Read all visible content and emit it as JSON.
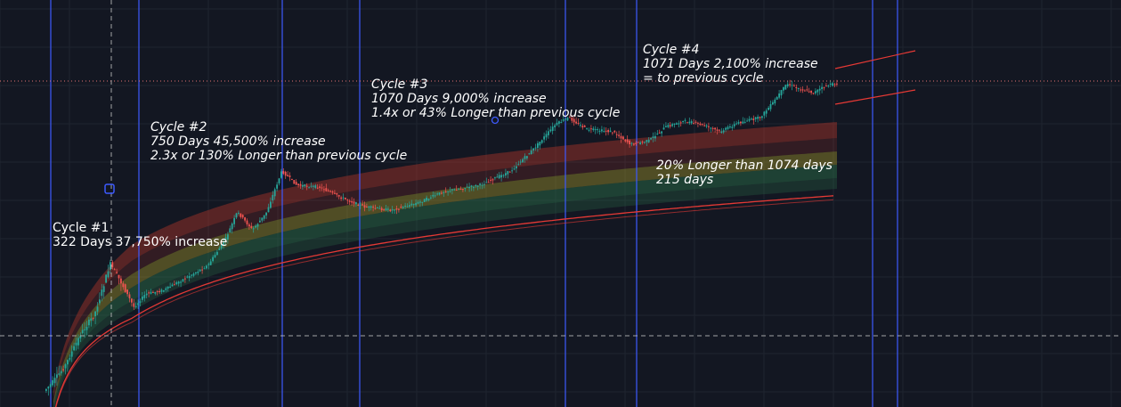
{
  "chart_data": {
    "type": "line",
    "colors": {
      "background": "#131722",
      "grid": "#1f2430",
      "cycle_line": "#3d5afe",
      "candle_up": "#26a69a",
      "candle_down": "#ef5350",
      "band_red": "#c0392b",
      "band_yellow": "#b5a52a",
      "band_green": "#2e7d4f",
      "regression_line": "#e53935",
      "price_line": "#e57373",
      "crosshair": "#c8c8c8"
    },
    "annotations": [
      {
        "id": "cycle1",
        "lines": [
          "Cycle #1",
          "322 Days 37,750% increase"
        ],
        "italic": false
      },
      {
        "id": "cycle2",
        "lines": [
          "Cycle #2",
          "750 Days 45,500% increase",
          "2.3x or 130% Longer than previous cycle"
        ],
        "italic": true
      },
      {
        "id": "cycle3",
        "lines": [
          "Cycle #3",
          "1070 Days 9,000% increase",
          "1.4x or 43% Longer than previous cycle"
        ],
        "italic": true
      },
      {
        "id": "cycle4",
        "lines": [
          "Cycle #4",
          "1071 Days 2,100% increase",
          "= to previous cycle"
        ],
        "italic": true
      },
      {
        "id": "projection",
        "lines": [
          "20% Longer than 1074 days",
          "215 days"
        ],
        "italic": true
      }
    ]
  }
}
